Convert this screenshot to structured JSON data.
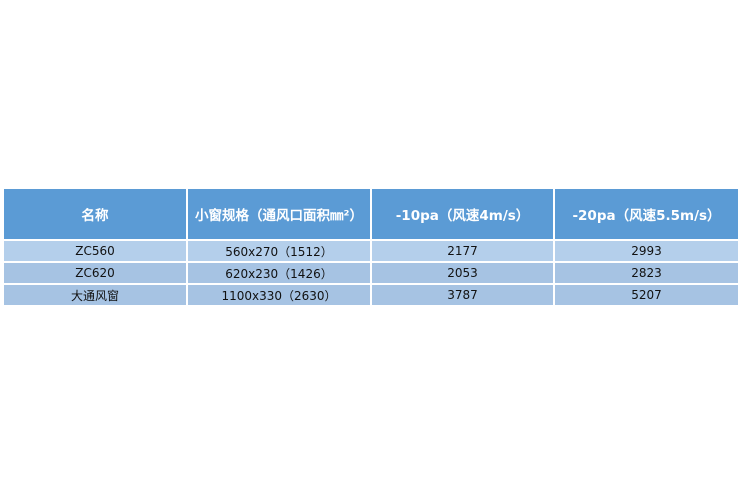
{
  "table": {
    "headers": [
      "名称",
      "小窗规格（通风口面积㎜²）",
      "-10pa（风速4m/s）",
      "-20pa（风速5.5m/s）"
    ],
    "rows": [
      [
        "ZC560",
        "560x270（1512）",
        "2177",
        "2993"
      ],
      [
        "ZC620",
        "620x230（1426）",
        "2053",
        "2823"
      ],
      [
        "大通风窗",
        "1100x330（2630）",
        "3787",
        "5207"
      ]
    ]
  },
  "colors": {
    "header_bg": "#5b9bd5",
    "row_light": "#b4cfeb",
    "row_dark": "#a6c3e3"
  }
}
